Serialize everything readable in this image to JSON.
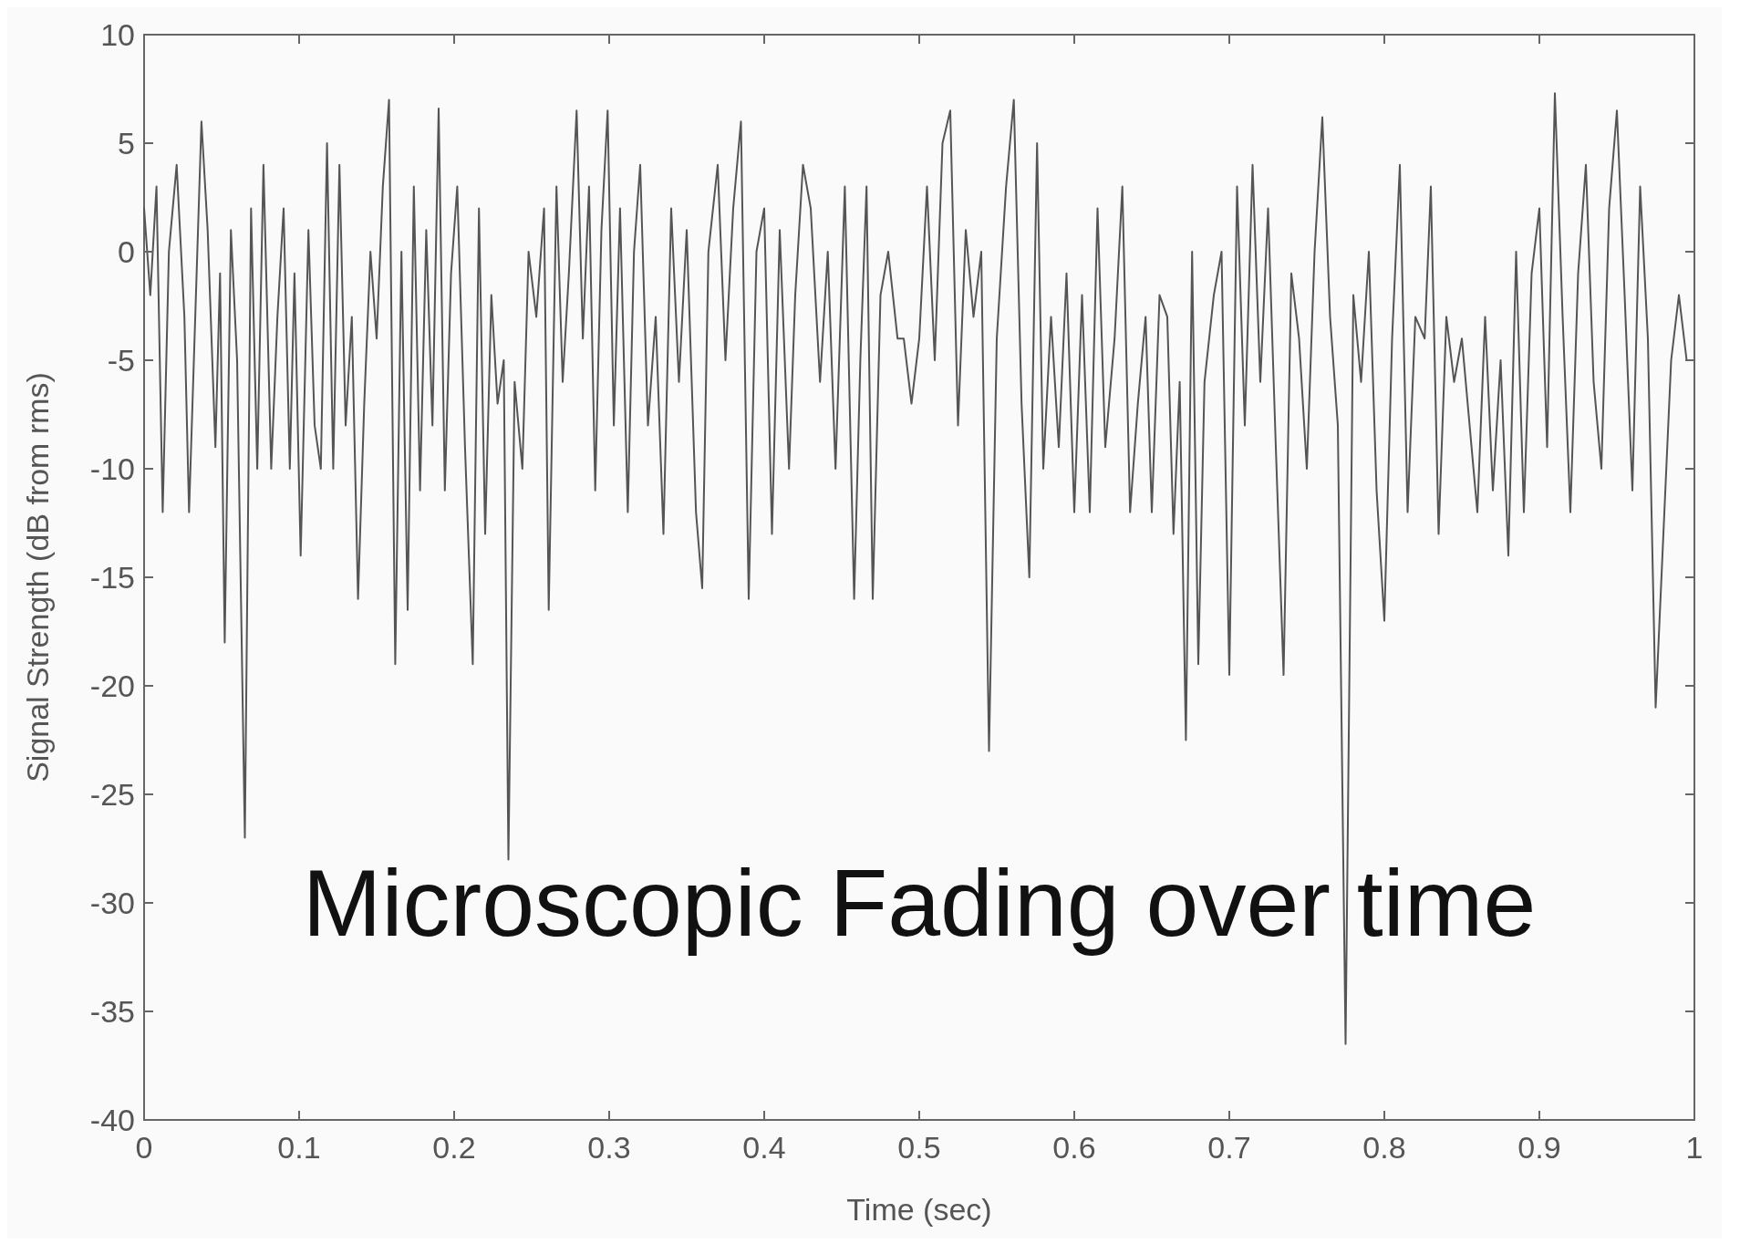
{
  "chart_data": {
    "type": "line",
    "title": "Microscopic Fading over time",
    "xlabel": "Time (sec)",
    "ylabel": "Signal Strength (dB from rms)",
    "xlim": [
      0,
      1
    ],
    "ylim": [
      -40,
      10
    ],
    "xticks": [
      0,
      0.1,
      0.2,
      0.3,
      0.4,
      0.5,
      0.6,
      0.7,
      0.8,
      0.9,
      1
    ],
    "yticks": [
      10,
      5,
      0,
      -5,
      -10,
      -15,
      -20,
      -25,
      -30,
      -35,
      -40
    ],
    "grid": false,
    "marker": "none",
    "line_style": "solid",
    "series": [
      {
        "color": "#555555",
        "x": [
          0,
          0.004,
          0.008,
          0.012,
          0.016,
          0.021,
          0.026,
          0.029,
          0.033,
          0.037,
          0.041,
          0.046,
          0.049,
          0.052,
          0.056,
          0.06,
          0.065,
          0.069,
          0.073,
          0.077,
          0.082,
          0.086,
          0.09,
          0.094,
          0.097,
          0.101,
          0.106,
          0.11,
          0.114,
          0.118,
          0.122,
          0.126,
          0.13,
          0.134,
          0.138,
          0.142,
          0.146,
          0.15,
          0.154,
          0.158,
          0.162,
          0.166,
          0.17,
          0.174,
          0.178,
          0.182,
          0.186,
          0.19,
          0.194,
          0.198,
          0.202,
          0.207,
          0.212,
          0.216,
          0.22,
          0.224,
          0.228,
          0.232,
          0.235,
          0.239,
          0.244,
          0.248,
          0.253,
          0.258,
          0.261,
          0.266,
          0.27,
          0.274,
          0.279,
          0.283,
          0.287,
          0.291,
          0.295,
          0.299,
          0.303,
          0.307,
          0.312,
          0.316,
          0.32,
          0.325,
          0.33,
          0.335,
          0.34,
          0.345,
          0.35,
          0.356,
          0.36,
          0.364,
          0.37,
          0.375,
          0.38,
          0.385,
          0.39,
          0.395,
          0.4,
          0.405,
          0.41,
          0.416,
          0.42,
          0.425,
          0.43,
          0.436,
          0.441,
          0.446,
          0.452,
          0.458,
          0.462,
          0.466,
          0.47,
          0.475,
          0.48,
          0.486,
          0.49,
          0.495,
          0.5,
          0.505,
          0.51,
          0.515,
          0.52,
          0.525,
          0.53,
          0.535,
          0.54,
          0.545,
          0.55,
          0.556,
          0.561,
          0.566,
          0.571,
          0.576,
          0.58,
          0.585,
          0.59,
          0.595,
          0.6,
          0.605,
          0.61,
          0.615,
          0.62,
          0.626,
          0.631,
          0.636,
          0.641,
          0.646,
          0.65,
          0.655,
          0.66,
          0.664,
          0.668,
          0.672,
          0.676,
          0.68,
          0.684,
          0.69,
          0.695,
          0.7,
          0.705,
          0.71,
          0.715,
          0.72,
          0.725,
          0.73,
          0.735,
          0.74,
          0.745,
          0.75,
          0.755,
          0.76,
          0.765,
          0.77,
          0.775,
          0.78,
          0.785,
          0.79,
          0.795,
          0.8,
          0.805,
          0.81,
          0.815,
          0.82,
          0.826,
          0.83,
          0.835,
          0.84,
          0.845,
          0.85,
          0.855,
          0.86,
          0.865,
          0.87,
          0.875,
          0.88,
          0.885,
          0.89,
          0.895,
          0.9,
          0.905,
          0.91,
          0.915,
          0.92,
          0.925,
          0.93,
          0.935,
          0.94,
          0.945,
          0.95,
          0.955,
          0.96,
          0.965,
          0.97,
          0.975,
          0.98,
          0.985,
          0.99,
          0.995,
          1
        ],
        "values": [
          2,
          -2,
          3,
          -12,
          0,
          4,
          -3,
          -12,
          -3,
          6,
          1,
          -9,
          -1,
          -18,
          1,
          -5,
          -27,
          2,
          -10,
          4,
          -10,
          -3,
          2,
          -10,
          -1,
          -14,
          1,
          -8,
          -10,
          5,
          -10,
          4,
          -8,
          -3,
          -16,
          -7,
          0,
          -4,
          3,
          7,
          -19,
          0,
          -16.5,
          3,
          -11,
          1,
          -8,
          6.6,
          -11,
          -1,
          3,
          -9,
          -19,
          2,
          -13,
          -2,
          -7,
          -5,
          -28,
          -6,
          -10,
          0,
          -3,
          2,
          -16.5,
          3,
          -6,
          -1,
          6.5,
          -4,
          3,
          -11,
          1,
          6.5,
          -8,
          2,
          -12,
          0,
          4,
          -8,
          -3,
          -13,
          2,
          -6,
          1,
          -12,
          -15.5,
          0,
          4,
          -5,
          2,
          6,
          -16,
          0,
          2,
          -13,
          1,
          -10,
          -2,
          4,
          2,
          -6,
          0,
          -10,
          3,
          -16,
          -5,
          3,
          -16,
          -2,
          0,
          -4,
          -4,
          -7,
          -4,
          3,
          -5,
          5,
          6.5,
          -8,
          1,
          -3,
          0,
          -23,
          -4,
          3,
          7,
          -7,
          -15,
          5,
          -10,
          -3,
          -9,
          -1,
          -12,
          -2,
          -12,
          2,
          -9,
          -4,
          3,
          -12,
          -7,
          -3,
          -12,
          -2,
          -3,
          -13,
          -6,
          -22.5,
          0,
          -19,
          -6,
          -2,
          0,
          -19.5,
          3,
          -8,
          4,
          -6,
          2,
          -9,
          -19.5,
          -1,
          -4,
          -10,
          0,
          6.2,
          -3,
          -8,
          -36.5,
          -2,
          -6,
          0,
          -11,
          -17,
          -4,
          4,
          -12,
          -3,
          -4,
          3,
          -13,
          -3,
          -6,
          -4,
          -8,
          -12,
          -3,
          -11,
          -5,
          -14,
          0,
          -12,
          -1,
          2,
          -9,
          7.3,
          -3,
          -12,
          -1,
          4,
          -6,
          -10,
          2,
          6.5,
          -2,
          -11,
          3,
          -4,
          -21,
          -13,
          -5,
          -2,
          -5,
          -5
        ]
      }
    ]
  }
}
